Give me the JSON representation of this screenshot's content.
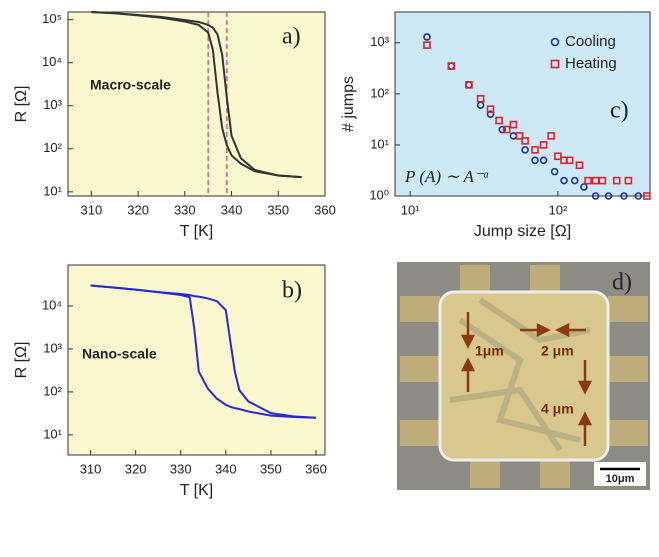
{
  "chart_data": [
    {
      "type": "line",
      "panel_label": "a)",
      "xlabel": "T [K]",
      "ylabel": "R [Ω]",
      "annotation": "Macro-scale",
      "annotation_color": "#d42020",
      "background": "#fbf7cf",
      "yscale": "log",
      "x": [
        310,
        315,
        320,
        325,
        330,
        333,
        335,
        336,
        337,
        338,
        339,
        340,
        342,
        345,
        350,
        355
      ],
      "series": [
        {
          "color": "#333333",
          "values": [
            150000,
            140000,
            125000,
            110000,
            90000,
            75000,
            50000,
            20000,
            2000,
            300,
            120,
            70,
            45,
            30,
            24,
            22
          ]
        },
        {
          "color": "#333333",
          "values": [
            150000,
            140000,
            128000,
            115000,
            98000,
            88000,
            75000,
            65000,
            45000,
            15000,
            1500,
            200,
            60,
            32,
            24,
            22
          ]
        }
      ],
      "vlines": [
        335,
        339
      ],
      "vline_color": "#d0608a",
      "xlim": [
        305,
        360
      ],
      "xticks": [
        310,
        320,
        330,
        340,
        350,
        360
      ],
      "ylim": [
        8,
        150000
      ],
      "yticks": [
        {
          "value": 10,
          "label": "10¹"
        },
        {
          "value": 100,
          "label": "10²"
        },
        {
          "value": 1000,
          "label": "10³"
        },
        {
          "value": 10000,
          "label": "10⁴"
        },
        {
          "value": 100000,
          "label": "10⁵"
        }
      ]
    },
    {
      "type": "line",
      "panel_label": "b)",
      "xlabel": "T [K]",
      "ylabel": "R [Ω]",
      "annotation": "Nano-scale",
      "annotation_color": "#d42020",
      "background": "#fbf7cf",
      "yscale": "log",
      "x": [
        310,
        315,
        320,
        325,
        330,
        332,
        333,
        334,
        336,
        338,
        340,
        341,
        342,
        343,
        345,
        350,
        355,
        360
      ],
      "series": [
        {
          "color": "#2a2ad0",
          "values": [
            30000,
            27000,
            24000,
            21000,
            18000,
            16000,
            3000,
            300,
            120,
            70,
            50,
            45,
            42,
            40,
            35,
            28,
            26,
            25
          ]
        },
        {
          "color": "#2a2ad0",
          "values": [
            30000,
            27000,
            24000,
            21000,
            19000,
            18000,
            17000,
            16500,
            15000,
            13000,
            8000,
            1500,
            300,
            110,
            60,
            32,
            27,
            25
          ]
        }
      ],
      "xlim": [
        305,
        362
      ],
      "xticks": [
        310,
        320,
        330,
        340,
        350,
        360
      ],
      "ylim": [
        3.4,
        90000
      ],
      "yticks": [
        {
          "value": 10,
          "label": "10¹"
        },
        {
          "value": 100,
          "label": "10²"
        },
        {
          "value": 1000,
          "label": "10³"
        },
        {
          "value": 10000,
          "label": "10⁴"
        }
      ]
    },
    {
      "type": "scatter",
      "panel_label": "c)",
      "xlabel": "Jump size [Ω]",
      "ylabel": "# jumps",
      "annotation": "P (A) ∼ A⁻ᵅ",
      "annotation_color": "#222222",
      "background": "#cde9f7",
      "xscale": "log",
      "yscale": "log",
      "legend": "upper right",
      "series": [
        {
          "name": "Cooling",
          "color": "#1e2f9a",
          "marker": "circle",
          "x": [
            13,
            19,
            25,
            30,
            35,
            42,
            50,
            60,
            70,
            80,
            95,
            110,
            130,
            150,
            180,
            220,
            280,
            350
          ],
          "values": [
            1300,
            350,
            150,
            60,
            40,
            20,
            15,
            8,
            5,
            5,
            3,
            2,
            2,
            1.5,
            1,
            1,
            1,
            1
          ]
        },
        {
          "name": "Heating",
          "color": "#e0202a",
          "marker": "square",
          "x": [
            13,
            19,
            25,
            30,
            35,
            40,
            45,
            50,
            55,
            60,
            70,
            80,
            90,
            100,
            110,
            120,
            140,
            160,
            180,
            200,
            250,
            300,
            400
          ],
          "values": [
            900,
            350,
            150,
            80,
            50,
            30,
            20,
            25,
            15,
            12,
            8,
            10,
            15,
            6,
            5,
            5,
            4,
            2,
            2,
            2,
            2,
            2,
            1
          ]
        }
      ],
      "xlim": [
        7.9,
        420
      ],
      "xticks": [
        {
          "value": 10,
          "label": "10¹"
        },
        {
          "value": 100,
          "label": "10²"
        }
      ],
      "ylim": [
        1,
        4000
      ],
      "yticks": [
        {
          "value": 1,
          "label": "10⁰"
        },
        {
          "value": 10,
          "label": "10¹"
        },
        {
          "value": 100,
          "label": "10²"
        },
        {
          "value": 1000,
          "label": "10³"
        }
      ]
    }
  ],
  "micrograph": {
    "panel_label": "d)",
    "annotations": [
      "1μm",
      "2 μm",
      "4 μm"
    ],
    "scale_bar": "10μm"
  }
}
